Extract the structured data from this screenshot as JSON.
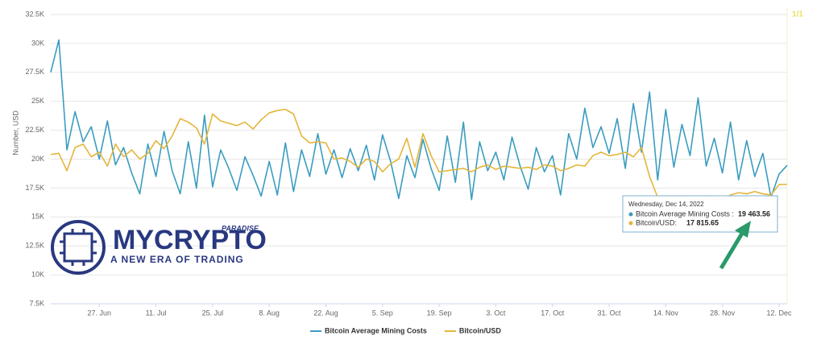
{
  "chart_data": {
    "type": "line",
    "y_label": "Number, USD",
    "pager": "1/1",
    "grid": true,
    "x": [
      "2022-06-15",
      "2022-06-17",
      "2022-06-19",
      "2022-06-21",
      "2022-06-23",
      "2022-06-25",
      "2022-06-27",
      "2022-06-29",
      "2022-07-01",
      "2022-07-03",
      "2022-07-05",
      "2022-07-07",
      "2022-07-09",
      "2022-07-11",
      "2022-07-13",
      "2022-07-15",
      "2022-07-17",
      "2022-07-19",
      "2022-07-21",
      "2022-07-23",
      "2022-07-25",
      "2022-07-27",
      "2022-07-29",
      "2022-07-31",
      "2022-08-02",
      "2022-08-04",
      "2022-08-06",
      "2022-08-08",
      "2022-08-10",
      "2022-08-12",
      "2022-08-14",
      "2022-08-16",
      "2022-08-18",
      "2022-08-20",
      "2022-08-22",
      "2022-08-24",
      "2022-08-26",
      "2022-08-28",
      "2022-08-30",
      "2022-09-01",
      "2022-09-03",
      "2022-09-05",
      "2022-09-07",
      "2022-09-09",
      "2022-09-11",
      "2022-09-13",
      "2022-09-15",
      "2022-09-17",
      "2022-09-19",
      "2022-09-21",
      "2022-09-23",
      "2022-09-25",
      "2022-09-27",
      "2022-09-29",
      "2022-10-01",
      "2022-10-03",
      "2022-10-05",
      "2022-10-07",
      "2022-10-09",
      "2022-10-11",
      "2022-10-13",
      "2022-10-15",
      "2022-10-17",
      "2022-10-19",
      "2022-10-21",
      "2022-10-23",
      "2022-10-25",
      "2022-10-27",
      "2022-10-29",
      "2022-10-31",
      "2022-11-02",
      "2022-11-04",
      "2022-11-06",
      "2022-11-08",
      "2022-11-10",
      "2022-11-12",
      "2022-11-14",
      "2022-11-16",
      "2022-11-18",
      "2022-11-20",
      "2022-11-22",
      "2022-11-24",
      "2022-11-26",
      "2022-11-28",
      "2022-11-30",
      "2022-12-02",
      "2022-12-04",
      "2022-12-06",
      "2022-12-08",
      "2022-12-10",
      "2022-12-12",
      "2022-12-14"
    ],
    "xlim": [
      "2022-06-15",
      "2022-12-14"
    ],
    "xticks": [
      {
        "value": "2022-06-27",
        "label": "27. Jun"
      },
      {
        "value": "2022-07-11",
        "label": "11. Jul"
      },
      {
        "value": "2022-07-25",
        "label": "25. Jul"
      },
      {
        "value": "2022-08-08",
        "label": "8. Aug"
      },
      {
        "value": "2022-08-22",
        "label": "22. Aug"
      },
      {
        "value": "2022-09-05",
        "label": "5. Sep"
      },
      {
        "value": "2022-09-19",
        "label": "19. Sep"
      },
      {
        "value": "2022-10-03",
        "label": "3. Oct"
      },
      {
        "value": "2022-10-17",
        "label": "17. Oct"
      },
      {
        "value": "2022-10-31",
        "label": "31. Oct"
      },
      {
        "value": "2022-11-14",
        "label": "14. Nov"
      },
      {
        "value": "2022-11-28",
        "label": "28. Nov"
      },
      {
        "value": "2022-12-12",
        "label": "12. Dec"
      }
    ],
    "ylim": [
      7500,
      32500
    ],
    "yticks": [
      {
        "value": 7500,
        "label": "7.5K"
      },
      {
        "value": 10000,
        "label": "10K"
      },
      {
        "value": 12500,
        "label": "12.5K"
      },
      {
        "value": 15000,
        "label": "15K"
      },
      {
        "value": 17500,
        "label": "17.5K"
      },
      {
        "value": 20000,
        "label": "20K"
      },
      {
        "value": 22500,
        "label": "22.5K"
      },
      {
        "value": 25000,
        "label": "25K"
      },
      {
        "value": 27500,
        "label": "27.5K"
      },
      {
        "value": 30000,
        "label": "30K"
      },
      {
        "value": 32500,
        "label": "32.5K"
      }
    ],
    "series": [
      {
        "name": "Bitcoin Average Mining Costs",
        "color": "#3a9cc0",
        "values": [
          27500,
          30300,
          20800,
          24100,
          21500,
          22800,
          20000,
          23300,
          19500,
          21000,
          18800,
          17000,
          21300,
          18500,
          22400,
          19000,
          17000,
          21500,
          17500,
          23800,
          17600,
          20800,
          19200,
          17300,
          20200,
          18600,
          16800,
          19800,
          16900,
          21400,
          17200,
          20800,
          18500,
          22200,
          18700,
          20800,
          18400,
          20900,
          19000,
          21200,
          18200,
          22100,
          19800,
          16600,
          20300,
          18400,
          21700,
          19200,
          17300,
          22000,
          18000,
          23200,
          16500,
          21500,
          19000,
          20600,
          18200,
          21900,
          19400,
          17400,
          21000,
          18900,
          20300,
          16900,
          22200,
          20000,
          24400,
          21000,
          22800,
          20500,
          23500,
          19200,
          24800,
          20600,
          25800,
          18200,
          24300,
          19300,
          23000,
          20300,
          25300,
          19400,
          21800,
          18800,
          23200,
          18200,
          21600,
          18500,
          20500,
          16700,
          18700,
          19463.56
        ]
      },
      {
        "name": "Bitcoin/USD",
        "color": "#e5b53a",
        "values": [
          20400,
          20500,
          19000,
          21000,
          21300,
          20200,
          20600,
          19400,
          21300,
          20200,
          20800,
          20000,
          20500,
          21600,
          20900,
          22000,
          23500,
          23200,
          22700,
          21300,
          23900,
          23300,
          23100,
          22900,
          23200,
          22600,
          23400,
          24000,
          24200,
          24300,
          23900,
          22000,
          21400,
          21500,
          21400,
          20000,
          20100,
          19800,
          19300,
          20000,
          19800,
          18900,
          19600,
          20000,
          21800,
          19300,
          22200,
          20300,
          18900,
          19000,
          19100,
          19200,
          18900,
          19300,
          19500,
          19100,
          19400,
          19300,
          19200,
          19300,
          19100,
          19500,
          19400,
          19000,
          19200,
          19500,
          19400,
          20300,
          20600,
          20300,
          20400,
          20600,
          20200,
          21000,
          18500,
          16700,
          16800,
          16600,
          16800,
          16500,
          16400,
          16700,
          16500,
          16500,
          16900,
          17100,
          17000,
          17200,
          17000,
          16900,
          17800,
          17815.65
        ]
      }
    ],
    "tooltip": {
      "title": "Wednesday, Dec 14, 2022",
      "items": [
        {
          "name": "Bitcoin Average Mining Costs :",
          "label": "19 463.56"
        },
        {
          "name": "Bitcoin/USD:",
          "label": "17 815.65"
        }
      ]
    },
    "watermark": {
      "brand": "MYCRYPTO",
      "tag": "PARADISE",
      "slogan": "A NEW ERA OF TRADING"
    }
  }
}
